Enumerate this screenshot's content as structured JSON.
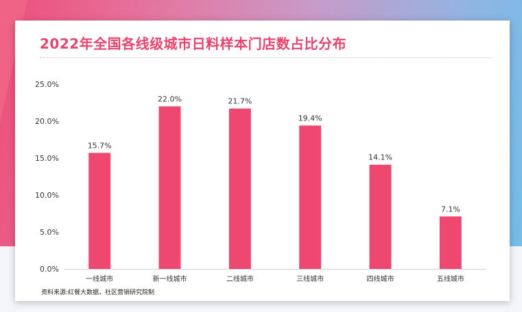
{
  "title": "2022年全国各线级城市日料样本门店数占比分布",
  "source": "资料来源:红餐大数据，社区营销研究院制",
  "colors": {
    "bar": "#ee4870",
    "title": "#e8436c",
    "axis": "#cfcfcf"
  },
  "chart_data": {
    "type": "bar",
    "categories": [
      "一线城市",
      "新一线城市",
      "二线城市",
      "三线城市",
      "四线城市",
      "五线城市"
    ],
    "values": [
      15.7,
      22.0,
      21.7,
      19.4,
      14.1,
      7.1
    ],
    "value_labels": [
      "15.7%",
      "22.0%",
      "21.7%",
      "19.4%",
      "14.1%",
      "7.1%"
    ],
    "y_ticks": [
      "0.0%",
      "5.0%",
      "10.0%",
      "15.0%",
      "20.0%",
      "25.0%"
    ],
    "ylim": [
      0,
      25
    ],
    "grid": false,
    "legend": "none"
  }
}
